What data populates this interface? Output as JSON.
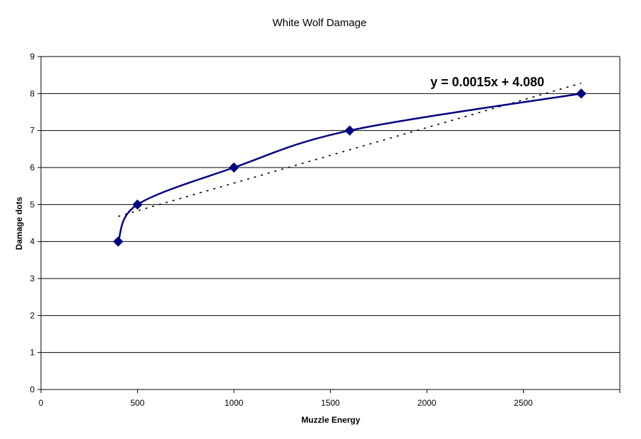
{
  "chart_data": {
    "type": "scatter",
    "title": "White Wolf Damage",
    "xlabel": "Muzzle Energy",
    "ylabel": "Damage dots",
    "xlim": [
      0,
      3000
    ],
    "ylim": [
      0,
      9
    ],
    "xticks": [
      0,
      500,
      1000,
      1500,
      2000,
      2500
    ],
    "yticks": [
      0,
      1,
      2,
      3,
      4,
      5,
      6,
      7,
      8,
      9
    ],
    "grid": {
      "horizontal": true,
      "vertical": false
    },
    "legend": "none",
    "series": [
      {
        "x": [
          400,
          500,
          1000,
          1600,
          2800
        ],
        "y": [
          4,
          5,
          6,
          7,
          8
        ],
        "marker": "diamond",
        "line": "smooth",
        "color": "#000080"
      }
    ],
    "trendline": {
      "type": "linear",
      "slope": 0.0015,
      "intercept": 4.08,
      "x_range": [
        400,
        2800
      ],
      "style": "dotted",
      "color": "#000000",
      "equation_label": "y = 0.0015x + 4.080"
    }
  }
}
